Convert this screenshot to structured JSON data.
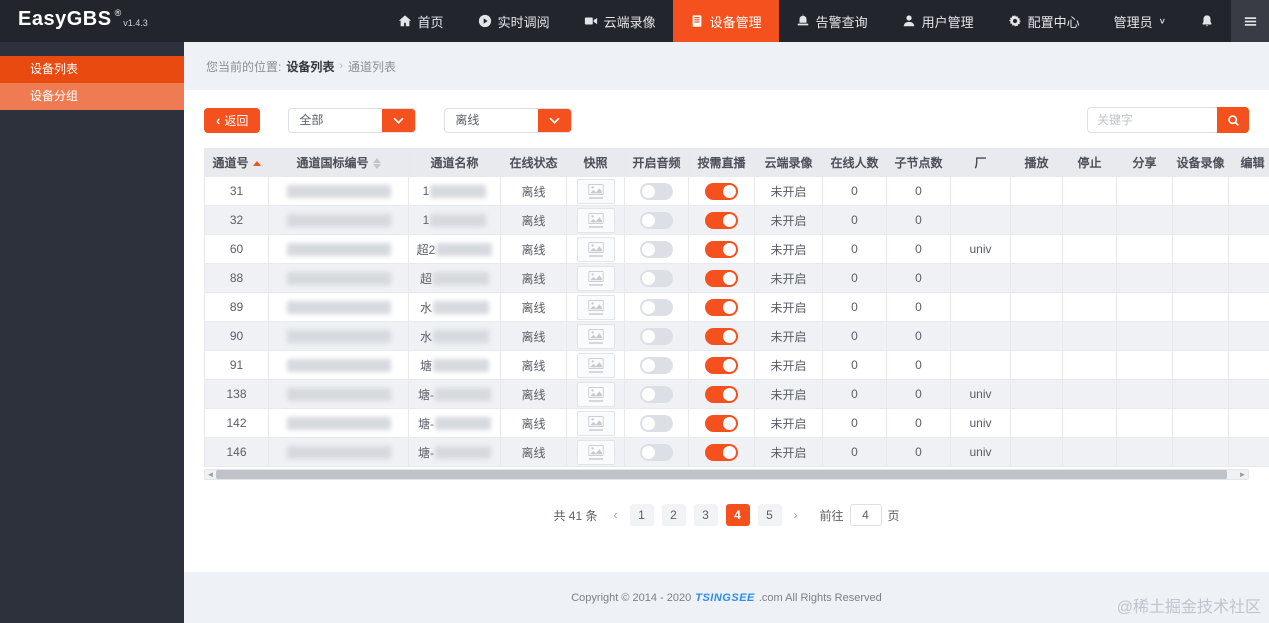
{
  "colors": {
    "accent": "#f4511e",
    "navbar_bg": "#23252c",
    "sidebar_bg": "#2c313c",
    "sidebar_item1_bg": "#e94a10",
    "sidebar_item2_bg": "#ef7b53",
    "page_bg": "#eef1f5",
    "toggle_on": "#f4511e",
    "toggle_off": "#dcdfe6",
    "logo_blue": "#2d8cf0"
  },
  "navbar": {
    "brand": "EasyGBS",
    "reg": "®",
    "version": "v1.4.3",
    "items": [
      {
        "label": "首页",
        "icon": "home-icon",
        "active": false
      },
      {
        "label": "实时调阅",
        "icon": "play-icon",
        "active": false
      },
      {
        "label": "云端录像",
        "icon": "camera-icon",
        "active": false
      },
      {
        "label": "设备管理",
        "icon": "device-icon",
        "active": true
      },
      {
        "label": "告警查询",
        "icon": "alarm-icon",
        "active": false
      },
      {
        "label": "用户管理",
        "icon": "user-icon",
        "active": false
      },
      {
        "label": "配置中心",
        "icon": "gear-icon",
        "active": false
      }
    ],
    "admin_label": "管理员",
    "admin_chevron": "∨"
  },
  "sidebar": {
    "items": [
      {
        "label": "设备列表",
        "active": true
      },
      {
        "label": "设备分组",
        "active": false
      }
    ]
  },
  "breadcrumb": {
    "location_label": "您当前的位置:",
    "crumb1": "设备列表",
    "separator": "›",
    "crumb2": "通道列表"
  },
  "toolbar": {
    "back_label": "返回",
    "back_chevron": "‹",
    "filters": [
      {
        "value": "全部"
      },
      {
        "value": "离线"
      }
    ],
    "search_placeholder": "关键字"
  },
  "table": {
    "columns": [
      {
        "label": "通道号",
        "sort": "asc"
      },
      {
        "label": "通道国标编号",
        "sort": "both"
      },
      {
        "label": "通道名称"
      },
      {
        "label": "在线状态"
      },
      {
        "label": "快照"
      },
      {
        "label": "开启音频"
      },
      {
        "label": "按需直播"
      },
      {
        "label": "云端录像"
      },
      {
        "label": "在线人数"
      },
      {
        "label": "子节点数"
      },
      {
        "label": "厂"
      },
      {
        "label": "播放"
      },
      {
        "label": "停止"
      },
      {
        "label": "分享"
      },
      {
        "label": "设备录像"
      },
      {
        "label": "编辑"
      }
    ],
    "rows": [
      {
        "channel_no": "31",
        "name_prefix": "1",
        "status": "离线",
        "audio_on": false,
        "live_on": true,
        "cloud": "未开启",
        "online_count": "0",
        "child_count": "0",
        "vendor": ""
      },
      {
        "channel_no": "32",
        "name_prefix": "1",
        "status": "离线",
        "audio_on": false,
        "live_on": true,
        "cloud": "未开启",
        "online_count": "0",
        "child_count": "0",
        "vendor": ""
      },
      {
        "channel_no": "60",
        "name_prefix": "超2",
        "status": "离线",
        "audio_on": false,
        "live_on": true,
        "cloud": "未开启",
        "online_count": "0",
        "child_count": "0",
        "vendor": "univ"
      },
      {
        "channel_no": "88",
        "name_prefix": "超",
        "status": "离线",
        "audio_on": false,
        "live_on": true,
        "cloud": "未开启",
        "online_count": "0",
        "child_count": "0",
        "vendor": ""
      },
      {
        "channel_no": "89",
        "name_prefix": "水",
        "status": "离线",
        "audio_on": false,
        "live_on": true,
        "cloud": "未开启",
        "online_count": "0",
        "child_count": "0",
        "vendor": ""
      },
      {
        "channel_no": "90",
        "name_prefix": "水",
        "status": "离线",
        "audio_on": false,
        "live_on": true,
        "cloud": "未开启",
        "online_count": "0",
        "child_count": "0",
        "vendor": ""
      },
      {
        "channel_no": "91",
        "name_prefix": "塘",
        "status": "离线",
        "audio_on": false,
        "live_on": true,
        "cloud": "未开启",
        "online_count": "0",
        "child_count": "0",
        "vendor": ""
      },
      {
        "channel_no": "138",
        "name_prefix": "塘-",
        "status": "离线",
        "audio_on": false,
        "live_on": true,
        "cloud": "未开启",
        "online_count": "0",
        "child_count": "0",
        "vendor": "univ"
      },
      {
        "channel_no": "142",
        "name_prefix": "塘-",
        "status": "离线",
        "audio_on": false,
        "live_on": true,
        "cloud": "未开启",
        "online_count": "0",
        "child_count": "0",
        "vendor": "univ"
      },
      {
        "channel_no": "146",
        "name_prefix": "塘-",
        "status": "离线",
        "audio_on": false,
        "live_on": true,
        "cloud": "未开启",
        "online_count": "0",
        "child_count": "0",
        "vendor": "univ"
      }
    ]
  },
  "pagination": {
    "total_label": "共 41 条",
    "prev": "‹",
    "next": "›",
    "pages": [
      "1",
      "2",
      "3",
      "4",
      "5"
    ],
    "active_page": "4",
    "goto_label": "前往",
    "goto_value": "4",
    "page_unit": "页"
  },
  "footer": {
    "copyright_prefix": "Copyright © 2014 - 2020",
    "logo_text": "TSINGSEE",
    "copyright_suffix": ".com All Rights Reserved"
  },
  "watermark": "@稀土掘金技术社区"
}
